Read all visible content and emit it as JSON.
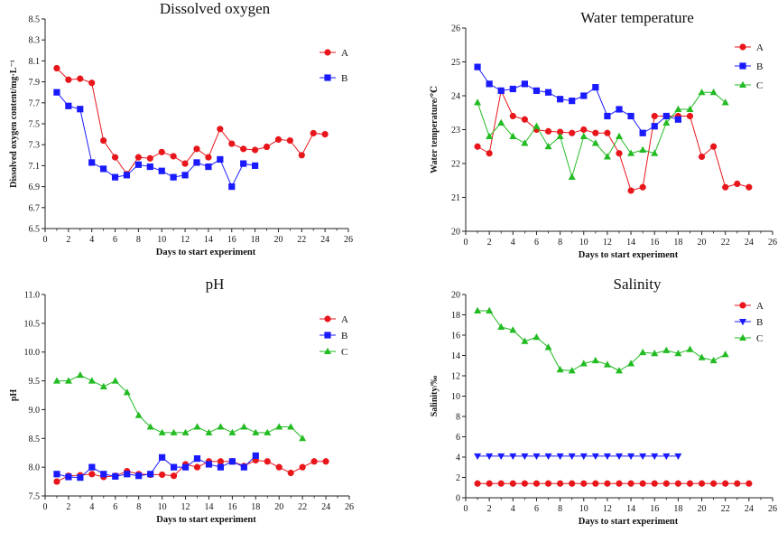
{
  "colors": {
    "A": "#e8161b",
    "B": "#1a1aff",
    "C": "#22bb22"
  },
  "chart_data": [
    {
      "type": "line",
      "title": "Dissolved oxygen",
      "xlabel": "Days to start experiment",
      "ylabel": "Dissolved oxygen content/mg·L⁻¹",
      "xlim": [
        0,
        26
      ],
      "ylim": [
        6.5,
        8.5
      ],
      "xticks": [
        0,
        2,
        4,
        6,
        8,
        10,
        12,
        14,
        16,
        18,
        20,
        22,
        24,
        26
      ],
      "yticks": [
        "6.5",
        "6.7",
        "6.9",
        "7.1",
        "7.3",
        "7.5",
        "7.7",
        "7.9",
        "8.1",
        "8.3",
        "8.5"
      ],
      "legend": "top-right",
      "series": [
        {
          "name": "A",
          "marker": "circle",
          "x": [
            1,
            2,
            3,
            4,
            5,
            6,
            7,
            8,
            9,
            10,
            11,
            12,
            13,
            14,
            15,
            16,
            17,
            18,
            19,
            20,
            21,
            22,
            23,
            24
          ],
          "y": [
            8.03,
            7.92,
            7.93,
            7.89,
            7.34,
            7.18,
            7.02,
            7.18,
            7.17,
            7.23,
            7.19,
            7.12,
            7.26,
            7.18,
            7.45,
            7.31,
            7.26,
            7.25,
            7.28,
            7.35,
            7.34,
            7.2,
            7.41,
            7.4
          ]
        },
        {
          "name": "B",
          "marker": "square",
          "x": [
            1,
            2,
            3,
            4,
            5,
            6,
            7,
            8,
            9,
            10,
            11,
            12,
            13,
            14,
            15,
            16,
            17,
            18
          ],
          "y": [
            7.8,
            7.67,
            7.64,
            7.13,
            7.07,
            6.99,
            7.01,
            7.11,
            7.09,
            7.05,
            6.99,
            7.01,
            7.13,
            7.09,
            7.16,
            6.9,
            7.12,
            7.1
          ]
        }
      ]
    },
    {
      "type": "line",
      "title": "Water temperature",
      "xlabel": "Days to start experiment",
      "ylabel": "Water temperature/℃",
      "xlim": [
        0,
        26
      ],
      "ylim": [
        20,
        26
      ],
      "xticks": [
        0,
        2,
        4,
        6,
        8,
        10,
        12,
        14,
        16,
        18,
        20,
        22,
        24,
        26
      ],
      "yticks": [
        "20",
        "21",
        "22",
        "23",
        "24",
        "25",
        "26"
      ],
      "legend": "top-right",
      "series": [
        {
          "name": "A",
          "marker": "circle",
          "x": [
            1,
            2,
            3,
            4,
            5,
            6,
            7,
            8,
            9,
            10,
            11,
            12,
            13,
            14,
            15,
            16,
            17,
            18,
            19,
            20,
            21,
            22,
            23,
            24
          ],
          "y": [
            22.5,
            22.3,
            24.15,
            23.4,
            23.3,
            23.0,
            22.95,
            22.93,
            22.9,
            23.0,
            22.9,
            22.9,
            22.3,
            21.2,
            21.3,
            23.4,
            23.4,
            23.4,
            23.4,
            22.2,
            22.5,
            21.3,
            21.4,
            21.3
          ]
        },
        {
          "name": "B",
          "marker": "square",
          "x": [
            1,
            2,
            3,
            4,
            5,
            6,
            7,
            8,
            9,
            10,
            11,
            12,
            13,
            14,
            15,
            16,
            17,
            18
          ],
          "y": [
            24.85,
            24.35,
            24.15,
            24.2,
            24.35,
            24.15,
            24.1,
            23.9,
            23.85,
            24.0,
            24.25,
            23.4,
            23.6,
            23.4,
            22.9,
            23.1,
            23.4,
            23.3
          ]
        },
        {
          "name": "C",
          "marker": "triangle-up",
          "x": [
            1,
            2,
            3,
            4,
            5,
            6,
            7,
            8,
            9,
            10,
            11,
            12,
            13,
            14,
            15,
            16,
            17,
            18,
            19,
            20,
            21,
            22
          ],
          "y": [
            23.8,
            22.8,
            23.2,
            22.8,
            22.6,
            23.1,
            22.5,
            22.8,
            21.6,
            22.8,
            22.6,
            22.2,
            22.8,
            22.3,
            22.4,
            22.3,
            23.2,
            23.6,
            23.6,
            24.1,
            24.1,
            23.8
          ]
        }
      ]
    },
    {
      "type": "line",
      "title": "pH",
      "xlabel": "Days to start experiment",
      "ylabel": "pH",
      "xlim": [
        0,
        26
      ],
      "ylim": [
        7.5,
        11.0
      ],
      "xticks": [
        0,
        2,
        4,
        6,
        8,
        10,
        12,
        14,
        16,
        18,
        20,
        22,
        24,
        26
      ],
      "yticks": [
        "7.5",
        "8.0",
        "8.5",
        "9.0",
        "9.5",
        "10.0",
        "10.5",
        "11.0"
      ],
      "legend": "top-right",
      "series": [
        {
          "name": "A",
          "marker": "circle",
          "x": [
            1,
            2,
            3,
            4,
            5,
            6,
            7,
            8,
            9,
            10,
            11,
            12,
            13,
            14,
            15,
            16,
            17,
            18,
            19,
            20,
            21,
            22,
            23,
            24
          ],
          "y": [
            7.75,
            7.85,
            7.86,
            7.88,
            7.83,
            7.85,
            7.93,
            7.88,
            7.87,
            7.87,
            7.85,
            8.05,
            8.0,
            8.1,
            8.1,
            8.1,
            8.02,
            8.12,
            8.1,
            8.0,
            7.9,
            8.0,
            8.1,
            8.1
          ]
        },
        {
          "name": "B",
          "marker": "square",
          "x": [
            1,
            2,
            3,
            4,
            5,
            6,
            7,
            8,
            9,
            10,
            11,
            12,
            13,
            14,
            15,
            16,
            17,
            18
          ],
          "y": [
            7.88,
            7.83,
            7.82,
            8.0,
            7.88,
            7.84,
            7.88,
            7.85,
            7.88,
            8.17,
            8.0,
            8.0,
            8.15,
            8.05,
            8.0,
            8.1,
            8.0,
            8.2
          ]
        },
        {
          "name": "C",
          "marker": "triangle-up",
          "x": [
            1,
            2,
            3,
            4,
            5,
            6,
            7,
            8,
            9,
            10,
            11,
            12,
            13,
            14,
            15,
            16,
            17,
            18,
            19,
            20,
            21,
            22
          ],
          "y": [
            9.5,
            9.5,
            9.6,
            9.5,
            9.4,
            9.5,
            9.3,
            8.9,
            8.7,
            8.6,
            8.6,
            8.6,
            8.7,
            8.6,
            8.7,
            8.6,
            8.7,
            8.6,
            8.6,
            8.7,
            8.7,
            8.5
          ]
        }
      ]
    },
    {
      "type": "line",
      "title": "Salinity",
      "xlabel": "Days to start experiment",
      "ylabel": "Salinity/‰",
      "xlim": [
        0,
        26
      ],
      "ylim": [
        0,
        20
      ],
      "xticks": [
        0,
        2,
        4,
        6,
        8,
        10,
        12,
        14,
        16,
        18,
        20,
        22,
        24,
        26
      ],
      "yticks": [
        "0",
        "2",
        "4",
        "6",
        "8",
        "10",
        "12",
        "14",
        "16",
        "18",
        "20"
      ],
      "legend": "top-right",
      "series": [
        {
          "name": "A",
          "marker": "circle",
          "x": [
            1,
            2,
            3,
            4,
            5,
            6,
            7,
            8,
            9,
            10,
            11,
            12,
            13,
            14,
            15,
            16,
            17,
            18,
            19,
            20,
            21,
            22,
            23,
            24
          ],
          "y": [
            1.4,
            1.4,
            1.4,
            1.4,
            1.4,
            1.4,
            1.4,
            1.4,
            1.4,
            1.4,
            1.4,
            1.4,
            1.4,
            1.4,
            1.4,
            1.4,
            1.4,
            1.4,
            1.4,
            1.4,
            1.4,
            1.4,
            1.4,
            1.4
          ]
        },
        {
          "name": "B",
          "marker": "triangle-down",
          "x": [
            1,
            2,
            3,
            4,
            5,
            6,
            7,
            8,
            9,
            10,
            11,
            12,
            13,
            14,
            15,
            16,
            17,
            18
          ],
          "y": [
            4.1,
            4.1,
            4.1,
            4.1,
            4.1,
            4.1,
            4.1,
            4.1,
            4.1,
            4.1,
            4.1,
            4.1,
            4.1,
            4.1,
            4.1,
            4.1,
            4.1,
            4.1
          ]
        },
        {
          "name": "C",
          "marker": "triangle-up",
          "x": [
            1,
            2,
            3,
            4,
            5,
            6,
            7,
            8,
            9,
            10,
            11,
            12,
            13,
            14,
            15,
            16,
            17,
            18,
            19,
            20,
            21,
            22
          ],
          "y": [
            18.4,
            18.4,
            16.8,
            16.5,
            15.4,
            15.8,
            14.8,
            12.6,
            12.5,
            13.2,
            13.5,
            13.1,
            12.5,
            13.2,
            14.3,
            14.2,
            14.5,
            14.2,
            14.6,
            13.8,
            13.5,
            14.1
          ]
        }
      ]
    }
  ]
}
